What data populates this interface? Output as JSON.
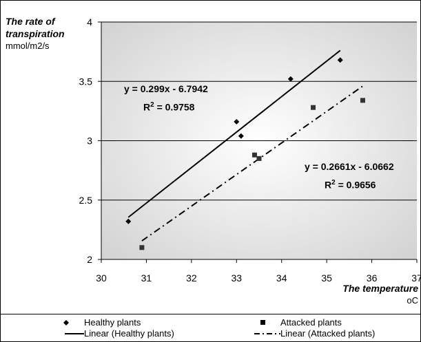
{
  "chart_data": {
    "type": "scatter",
    "title": "",
    "ylabel": "The rate of transpiration",
    "yunit": "mmol/m2/s",
    "xlabel": "The temperature",
    "xunit": "oC",
    "xlim": [
      30,
      37
    ],
    "ylim": [
      2,
      4
    ],
    "xticks": [
      "30",
      "31",
      "32",
      "33",
      "34",
      "35",
      "36",
      "37"
    ],
    "yticks": [
      "2",
      "2.5",
      "3",
      "3.5",
      "4"
    ],
    "grid": "horizontal",
    "legend_position": "bottom",
    "series": [
      {
        "name": "Healthy plants",
        "marker": "diamond",
        "points": [
          [
            30.6,
            2.32
          ],
          [
            33.0,
            3.16
          ],
          [
            33.1,
            3.04
          ],
          [
            34.2,
            3.52
          ],
          [
            35.3,
            3.68
          ]
        ],
        "trendline": {
          "name": "Linear (Healthy plants)",
          "slope": 0.299,
          "intercept": -6.7942,
          "x_range": [
            30.6,
            35.3
          ],
          "style": "solid"
        },
        "equation": "y = 0.299x - 6.7942",
        "r2_label": "R",
        "r2_value": "= 0.9758"
      },
      {
        "name": "Attacked plants",
        "marker": "square",
        "points": [
          [
            30.9,
            2.1
          ],
          [
            33.4,
            2.88
          ],
          [
            33.5,
            2.85
          ],
          [
            34.7,
            3.28
          ],
          [
            35.8,
            3.34
          ]
        ],
        "trendline": {
          "name": "Linear (Attacked plants)",
          "slope": 0.2661,
          "intercept": -6.0662,
          "x_range": [
            30.9,
            35.8
          ],
          "style": "dash-dot"
        },
        "equation": "y = 0.2661x - 6.0662",
        "r2_label": "R",
        "r2_value": "= 0.9656"
      }
    ],
    "colors": {
      "background_top": "#d4d4d4",
      "background_center": "#ffffff",
      "marks": "#000000"
    }
  },
  "labels": {
    "ylabel_line1": "The rate of",
    "ylabel_line2": "transpiration",
    "yunit": "mmol/m2/s",
    "xlabel": "The temperature",
    "xunit": "oC",
    "r2_superscript": "2"
  }
}
